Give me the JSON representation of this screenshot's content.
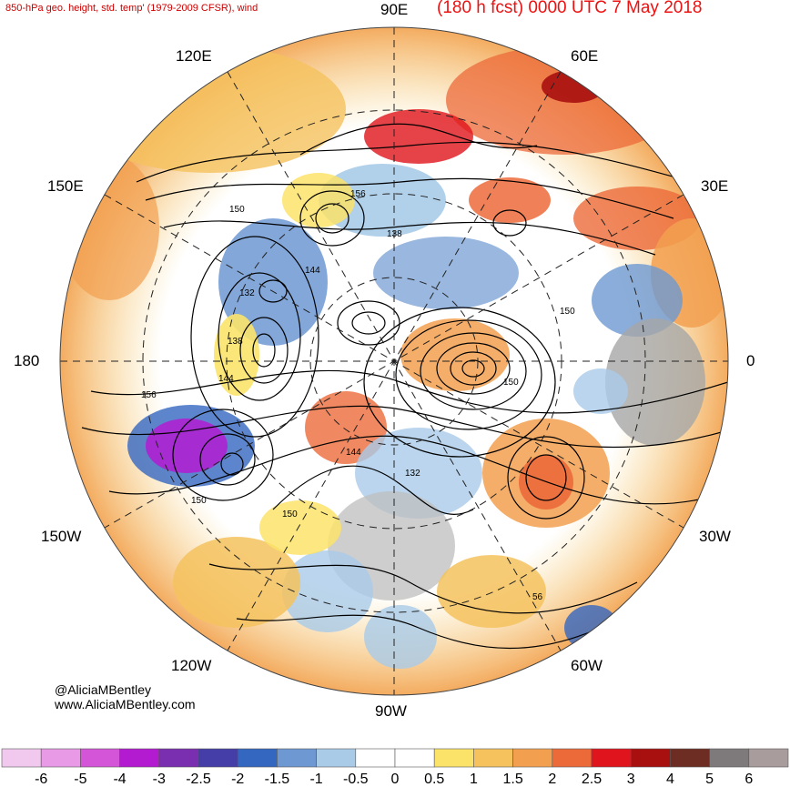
{
  "header": {
    "left_title": "850-hPa geo. height, std. temp' (1979-2009 CFSR), wind",
    "right_title": "(180 h fcst) 0000 UTC 7 May 2018"
  },
  "longitude_labels": {
    "top": "90E",
    "upper_left": "120E",
    "upper_right": "60E",
    "left_upper": "150E",
    "right_upper": "30E",
    "left": "180",
    "right": "0",
    "left_lower": "150W",
    "right_lower": "30W",
    "lower_left": "120W",
    "lower_right": "60W",
    "bottom": "90W"
  },
  "contour_labels": [
    "150",
    "156",
    "138",
    "144",
    "132",
    "138",
    "144",
    "156",
    "150",
    "150",
    "144",
    "132",
    "150",
    "56",
    "150"
  ],
  "credits": {
    "twitter": "@AliciaMBentley",
    "website": "www.AliciaMBentley.com"
  },
  "colorbar": {
    "colors": [
      "#f2c9ee",
      "#e89ae6",
      "#d455d8",
      "#b31bd1",
      "#7a2fb0",
      "#463ea8",
      "#3467c0",
      "#6d98d2",
      "#a9cbe8",
      "#ffffff",
      "#ffffff",
      "#fbe36a",
      "#f5c25e",
      "#f2a050",
      "#ec6a3a",
      "#e0141c",
      "#a80f0f",
      "#6e2d22",
      "#7e7a7c",
      "#a99c9c"
    ],
    "labels": [
      "-6",
      "-5",
      "-4",
      "-3",
      "-2.5",
      "-2",
      "-1.5",
      "-1",
      "-0.5",
      "0",
      "0.5",
      "1",
      "1.5",
      "2",
      "2.5",
      "3",
      "4",
      "5",
      "6"
    ]
  }
}
